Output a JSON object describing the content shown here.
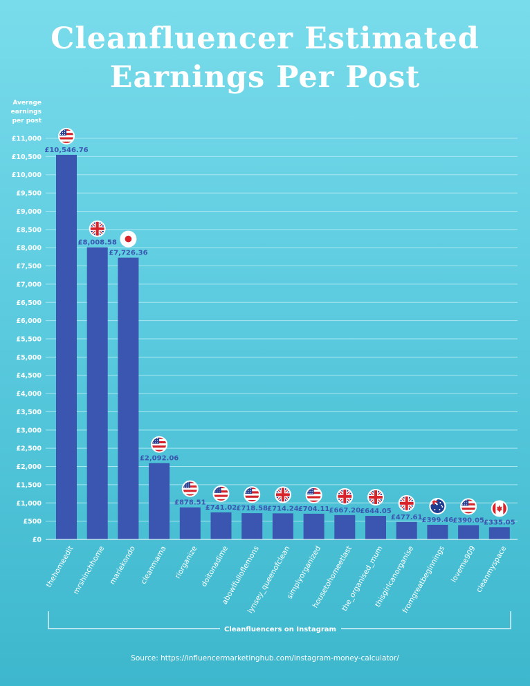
{
  "title": "Cleanfluencer Estimated Earnings Per Post",
  "ylabel": "Average earnings per post",
  "source": "Source: https://influencermarketinghub.com/instagram-money-calculator/",
  "chart_data": {
    "type": "bar",
    "title": "Cleanfluencer Estimated Earnings Per Post",
    "xlabel": "Cleanfluencers on Instagram",
    "ylabel": "Average earnings per post",
    "ylim": [
      0,
      11000
    ],
    "yticks": [
      0,
      500,
      1000,
      1500,
      2000,
      2500,
      3000,
      3500,
      4000,
      4500,
      5000,
      5500,
      6000,
      6500,
      7000,
      7500,
      8000,
      8500,
      9000,
      9500,
      10000,
      10500,
      11000
    ],
    "ytick_labels": [
      "£0",
      "£500",
      "£1,000",
      "£1,500",
      "£2,000",
      "£2,500",
      "£3,000",
      "£3,500",
      "£4,000",
      "£4,500",
      "£5,000",
      "£5,500",
      "£6,000",
      "£6,500",
      "£7,000",
      "£7,500",
      "£8,000",
      "£8,500",
      "£9,000",
      "£9,500",
      "£10,000",
      "£10,500",
      "£11,000"
    ],
    "grid": true,
    "categories": [
      "thehomeedit",
      "mrshinchhome",
      "mariekondo",
      "cleanmama",
      "riorganize",
      "doitonadime",
      "abowlfulloflemons",
      "lynsey_queenofclean",
      "simplyorganized",
      "housetohomeetlast",
      "the_organised_mum",
      "thisgirlcanorganise",
      "fromgreatbeginnings",
      "loveme909",
      "cleanmyspace"
    ],
    "values": [
      10546.76,
      8008.58,
      7726.36,
      2092.06,
      878.51,
      741.02,
      718.58,
      714.24,
      704.11,
      667.2,
      644.05,
      477.61,
      399.46,
      390.05,
      335.05
    ],
    "data_labels": [
      "£10,546.76",
      "£8,008.58",
      "£7,726.36",
      "£2,092.06",
      "£878.51",
      "£741.02",
      "£718.58",
      "£714.24",
      "£704.11",
      "£667.20",
      "£644.05",
      "£477.61",
      "£399.46",
      "£390.05",
      "£335.05"
    ],
    "flags": [
      "us",
      "uk",
      "jp",
      "us",
      "us",
      "us",
      "us",
      "uk",
      "us",
      "uk",
      "uk",
      "uk",
      "au",
      "us",
      "ca"
    ],
    "colors": {
      "bar": "#3a56b0",
      "label": "#3a56b0",
      "grid": "#a9e6f0",
      "axis": "#ffffff"
    }
  }
}
